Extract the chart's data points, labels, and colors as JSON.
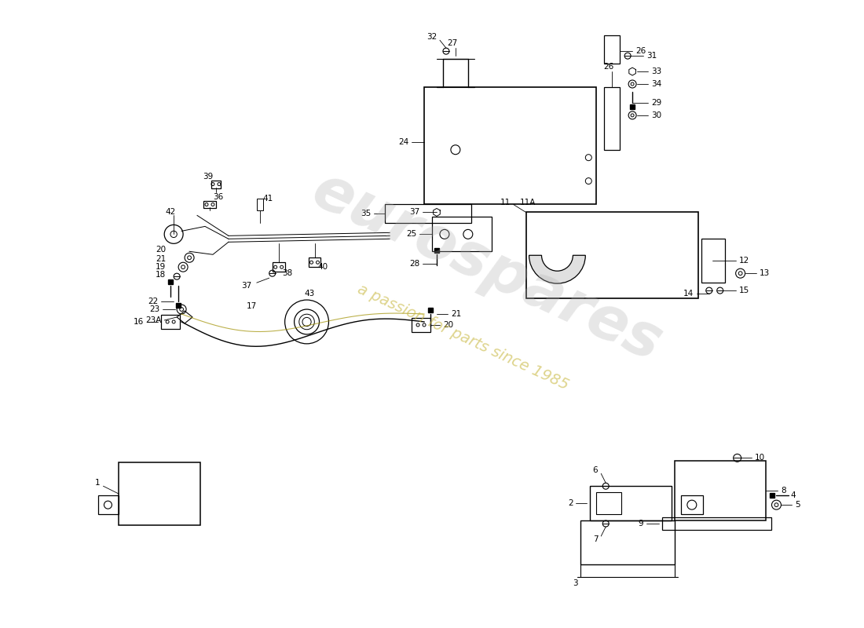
{
  "bg": "#ffffff",
  "lc": "#000000",
  "wm1": "eurospares",
  "wm2": "a passion for parts since 1985",
  "wm1_color": "#b0b0b0",
  "wm2_color": "#c8b840",
  "fs": 7.5
}
